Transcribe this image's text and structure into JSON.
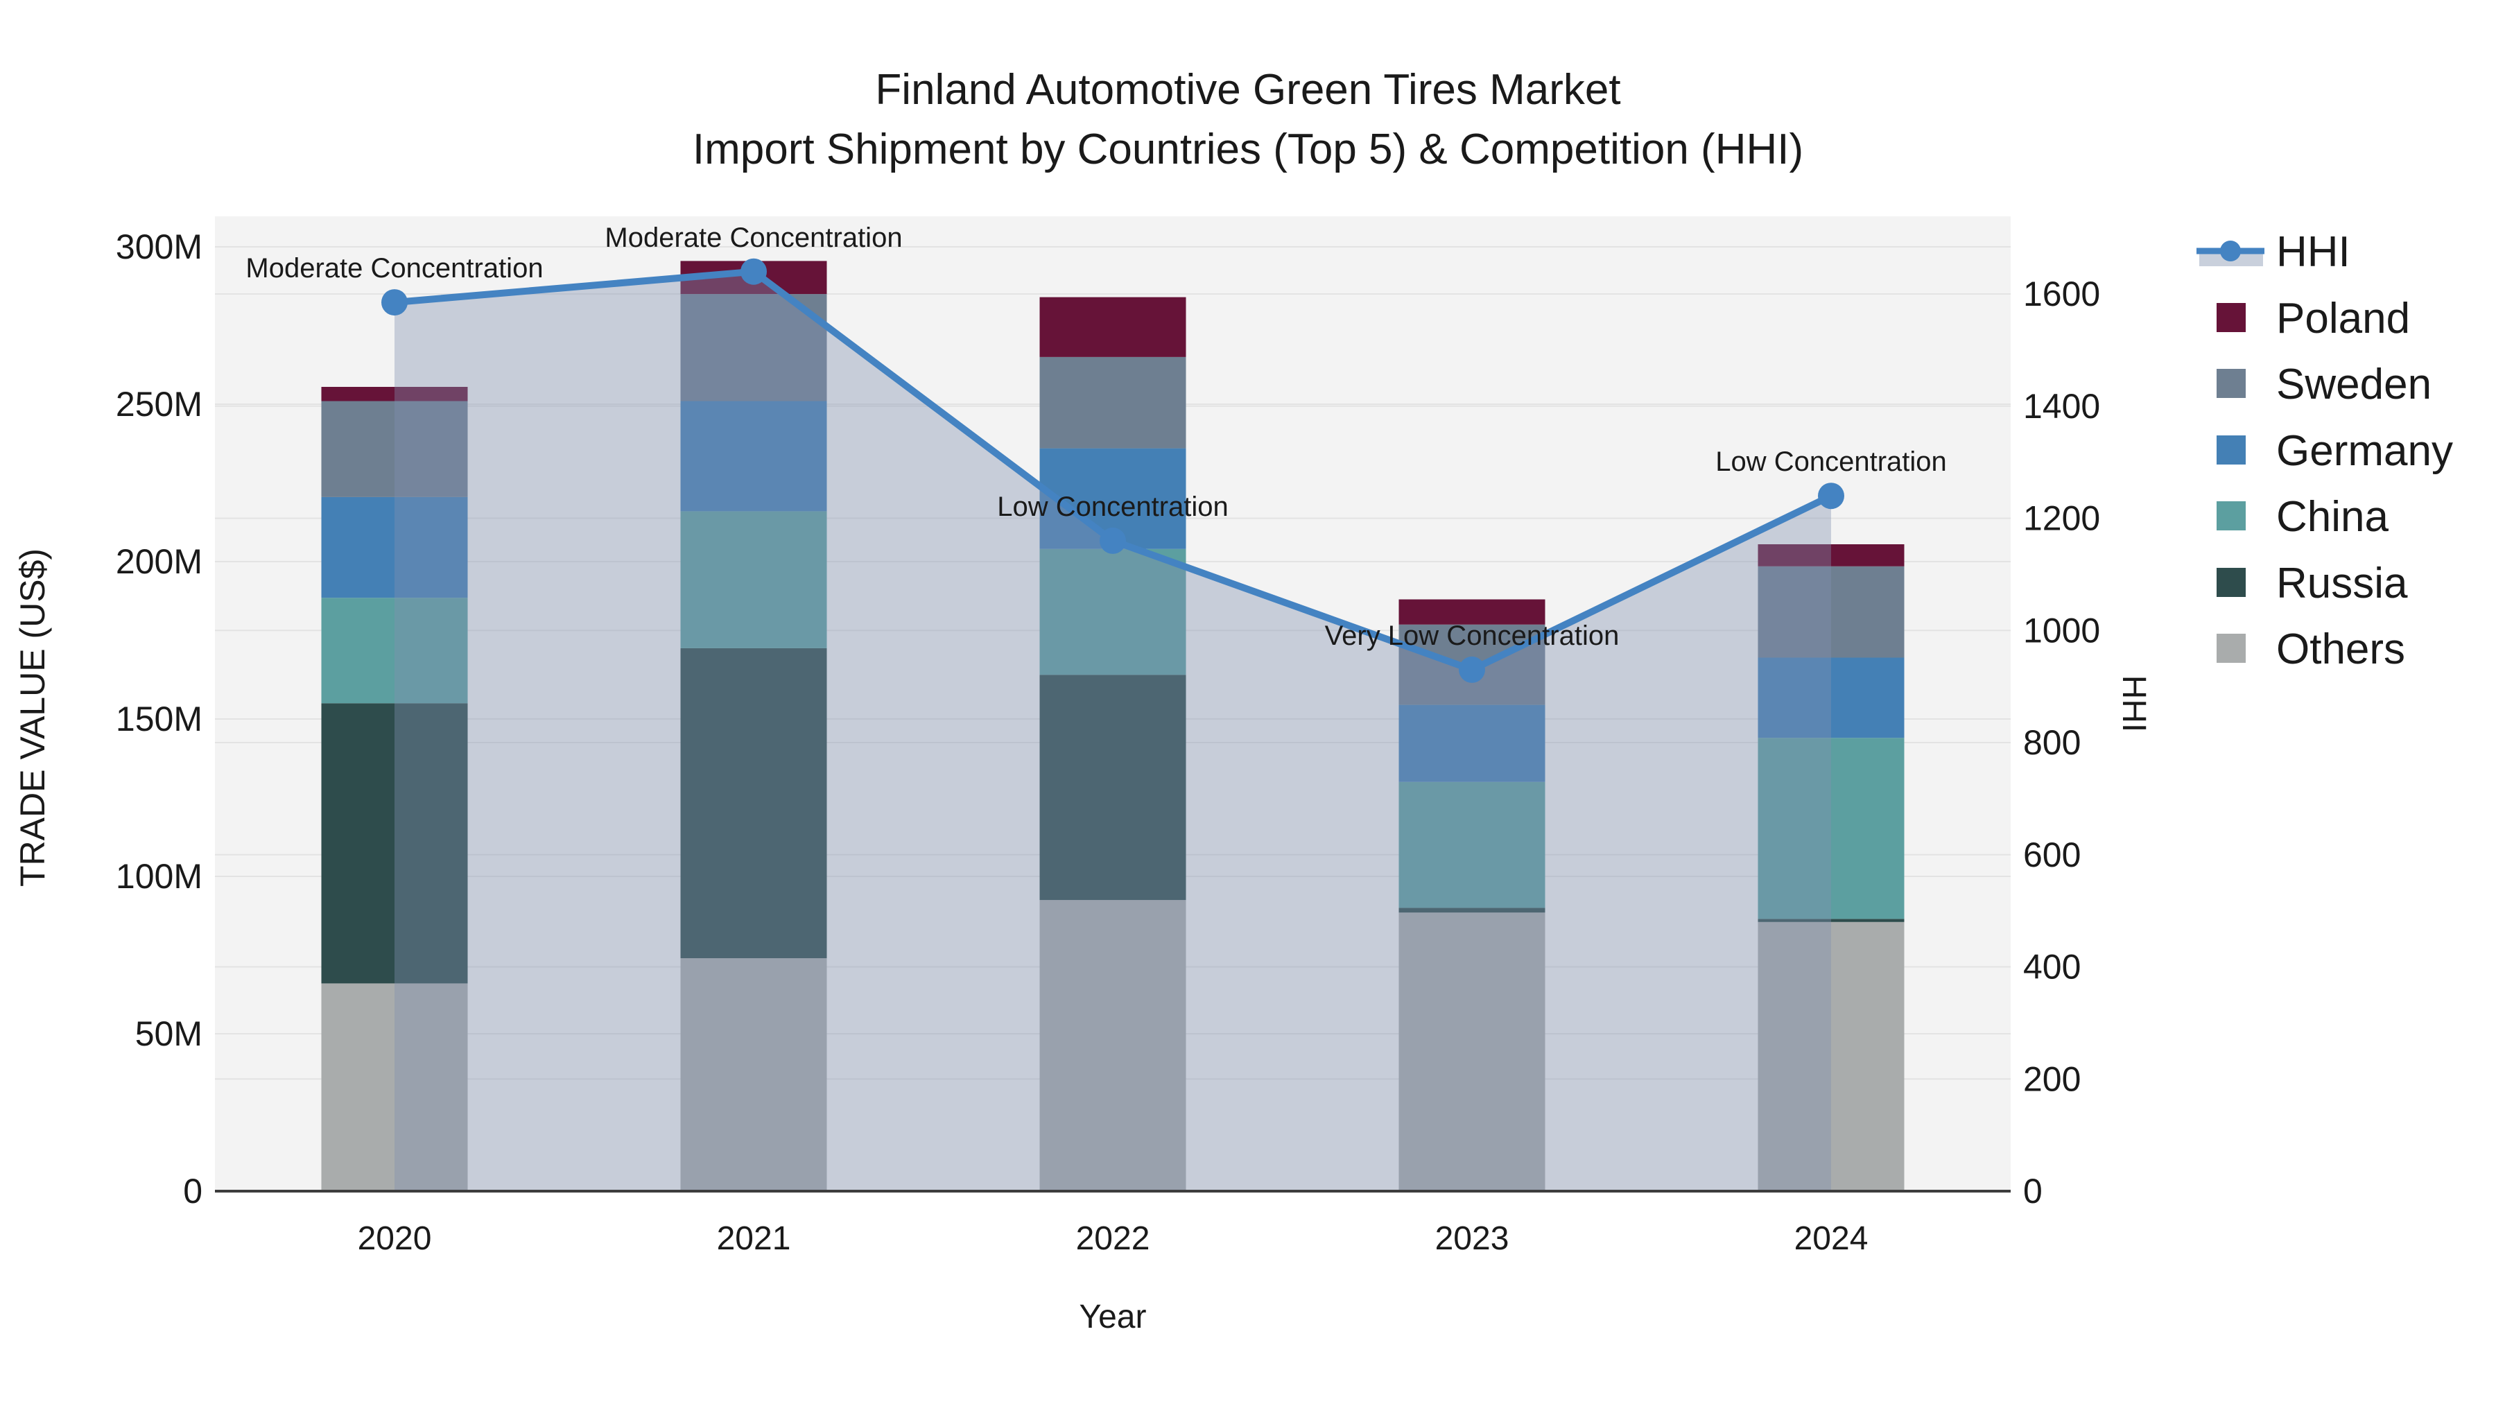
{
  "title": {
    "line1": "Finland Automotive Green Tires Market",
    "line2": "Import Shipment by Countries (Top 5) & Competition (HHI)"
  },
  "axes": {
    "x_title": "Year",
    "y_left_title": "TRADE VALUE (US$)",
    "y_right_title": "HHI",
    "y_left_ticks": [
      "0",
      "50M",
      "100M",
      "150M",
      "200M",
      "250M",
      "300M"
    ],
    "y_right_ticks": [
      "0",
      "200",
      "400",
      "600",
      "800",
      "1000",
      "1200",
      "1400",
      "1600"
    ]
  },
  "legend": {
    "items": [
      "HHI",
      "Poland",
      "Sweden",
      "Germany",
      "China",
      "Russia",
      "Others"
    ]
  },
  "chart_data": {
    "type": "stacked-bar+line",
    "title": "Finland Automotive Green Tires Market Import Shipment by Countries (Top 5) & Competition (HHI)",
    "categories": [
      "2020",
      "2021",
      "2022",
      "2023",
      "2024"
    ],
    "value_unit": "Million US$",
    "series": [
      {
        "name": "Poland",
        "color": "#661338",
        "values": [
          4.5,
          10.5,
          19,
          8,
          7
        ]
      },
      {
        "name": "Sweden",
        "color": "#6E7F91",
        "values": [
          30.5,
          34,
          29,
          25.5,
          29
        ]
      },
      {
        "name": "Germany",
        "color": "#4480B5",
        "values": [
          32,
          35,
          32,
          24.5,
          25.5
        ]
      },
      {
        "name": "China",
        "color": "#5C9FA0",
        "values": [
          33.5,
          43.5,
          40,
          40,
          57.5
        ]
      },
      {
        "name": "Russia",
        "color": "#2E4C4C",
        "values": [
          89,
          98.5,
          71.5,
          1.5,
          1
        ]
      },
      {
        "name": "Others",
        "color": "#A9ACAC",
        "values": [
          66,
          74,
          92.5,
          88.5,
          85.5
        ]
      }
    ],
    "bar_totals": [
      255.5,
      295.5,
      284,
      188,
      205.5
    ],
    "stack_order_bottom_to_top": [
      "Others",
      "Russia",
      "China",
      "Germany",
      "Sweden",
      "Poland"
    ],
    "line": {
      "name": "HHI",
      "color": "#4483C2",
      "area_fill": "rgba(130,145,175,0.38)",
      "legend_fill_swatch": "#C9D0DC",
      "values": [
        1585,
        1640,
        1160,
        930,
        1240
      ]
    },
    "annotations": [
      "Moderate Concentration",
      "Moderate Concentration",
      "Low Concentration",
      "Very Low Concentration",
      "Low Concentration"
    ],
    "xlabel": "Year",
    "ylabel_left": "TRADE VALUE (US$)",
    "ylabel_right": "HHI",
    "y_left": {
      "min": 0,
      "max": 300,
      "tick_step": 50,
      "unit": "M"
    },
    "y_right": {
      "min": 0,
      "max": 1600,
      "tick_step": 200
    },
    "grid": true,
    "legend_position": "right",
    "plot_bg": "#F3F3F3",
    "grid_color": "#E3E3E3",
    "axis_line_color": "#3D3D3D"
  }
}
